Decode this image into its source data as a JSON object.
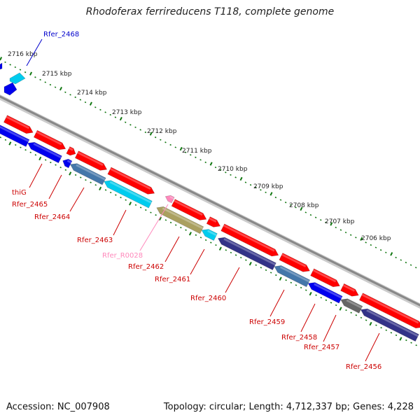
{
  "title": "Rhodoferax ferrireducens T118, complete genome",
  "accession": "Accession: NC_007908",
  "topology": "Topology: circular; Length: 4,712,337 bp; Genes: 4,228",
  "colors": {
    "forward": "#ff0000",
    "reverse_blue": "#0000ee",
    "cyan": "#00ccee",
    "steel": "#4477aa",
    "navy": "#333388",
    "olive": "#aaa060",
    "grey": "#666666",
    "pink": "#ff88bb",
    "tick": "#117711",
    "backbone": "#999999",
    "label_red": "#cc0000",
    "label_blue": "#0000cc",
    "label_pink": "#ff88bb"
  },
  "kbp_labels": [
    "2716 kbp",
    "2715 kbp",
    "2714 kbp",
    "2713 kbp",
    "2712 kbp",
    "2711 kbp",
    "2710 kbp",
    "2709 kbp",
    "2708 kbp",
    "2707 kbp",
    "2706 kbp"
  ],
  "gene_labels": [
    {
      "text": "Rfer_2468",
      "color": "blue"
    },
    {
      "text": "thiG",
      "color": "red"
    },
    {
      "text": "Rfer_2465",
      "color": "red"
    },
    {
      "text": "Rfer_2464",
      "color": "red"
    },
    {
      "text": "Rfer_2463",
      "color": "red"
    },
    {
      "text": "Rfer_R0028",
      "color": "pink"
    },
    {
      "text": "Rfer_2462",
      "color": "red"
    },
    {
      "text": "Rfer_2461",
      "color": "red"
    },
    {
      "text": "Rfer_2460",
      "color": "red"
    },
    {
      "text": "Rfer_2459",
      "color": "red"
    },
    {
      "text": "Rfer_2458",
      "color": "red"
    },
    {
      "text": "Rfer_2457",
      "color": "red"
    },
    {
      "text": "Rfer_2456",
      "color": "red"
    }
  ]
}
